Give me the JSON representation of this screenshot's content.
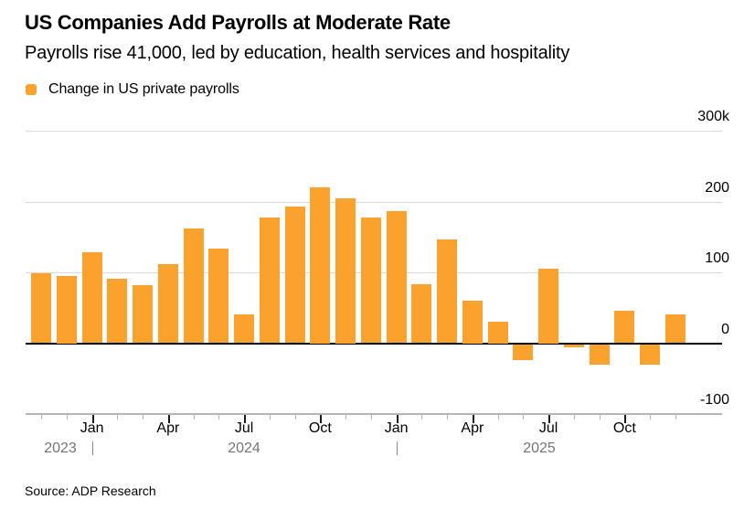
{
  "header": {
    "title": "US Companies Add Payrolls at Moderate Rate",
    "subtitle": "Payrolls rise 41,000, led by education, health services and hospitality"
  },
  "legend": {
    "label": "Change in US private payrolls",
    "swatch_color": "#FAA22D"
  },
  "source": "Source: ADP Research",
  "colors": {
    "bar": "#FAA22D",
    "gridline": "#D9D9D9",
    "zero_line": "#000000",
    "axis_line": "#B5B5B5",
    "major_tick": "#1A1A1A",
    "minor_tick": "#B5B5B5",
    "muted_text": "#757575"
  },
  "chart_data": {
    "type": "bar",
    "title": "Change in US private payrolls",
    "unit": "thousands of jobs",
    "grid": "horizontal",
    "legend_position": "top-left",
    "ylim": [
      -100,
      300
    ],
    "x": [
      "Nov 2023",
      "Dec 2023",
      "Jan 2024",
      "Feb 2024",
      "Mar 2024",
      "Apr 2024",
      "May 2024",
      "Jun 2024",
      "Jul 2024",
      "Aug 2024",
      "Sep 2024",
      "Oct 2024",
      "Nov 2024",
      "Dec 2024",
      "Jan 2025",
      "Feb 2025",
      "Mar 2025",
      "Apr 2025",
      "May 2025",
      "Jun 2025",
      "Jul 2025",
      "Aug 2025",
      "Sep 2025",
      "Oct 2025",
      "Nov 2025",
      "Dec 2025"
    ],
    "values": [
      99,
      95,
      129,
      91,
      82,
      112,
      162,
      134,
      41,
      178,
      193,
      220,
      205,
      177,
      186,
      83,
      146,
      60,
      30,
      -22,
      105,
      -4,
      -29,
      46,
      -29,
      41
    ],
    "yticks": [
      {
        "value": 300,
        "label": "300k"
      },
      {
        "value": 200,
        "label": "200"
      },
      {
        "value": 100,
        "label": "100"
      },
      {
        "value": 0,
        "label": "0"
      },
      {
        "value": -100,
        "label": "-100"
      }
    ],
    "month_ticks": [
      {
        "index": 2,
        "label": "Jan"
      },
      {
        "index": 5,
        "label": "Apr"
      },
      {
        "index": 8,
        "label": "Jul"
      },
      {
        "index": 11,
        "label": "Oct"
      },
      {
        "index": 14,
        "label": "Jan"
      },
      {
        "index": 17,
        "label": "Apr"
      },
      {
        "index": 20,
        "label": "Jul"
      },
      {
        "index": 23,
        "label": "Oct"
      }
    ],
    "year_labels": [
      "2023",
      "2024",
      "2025"
    ]
  }
}
